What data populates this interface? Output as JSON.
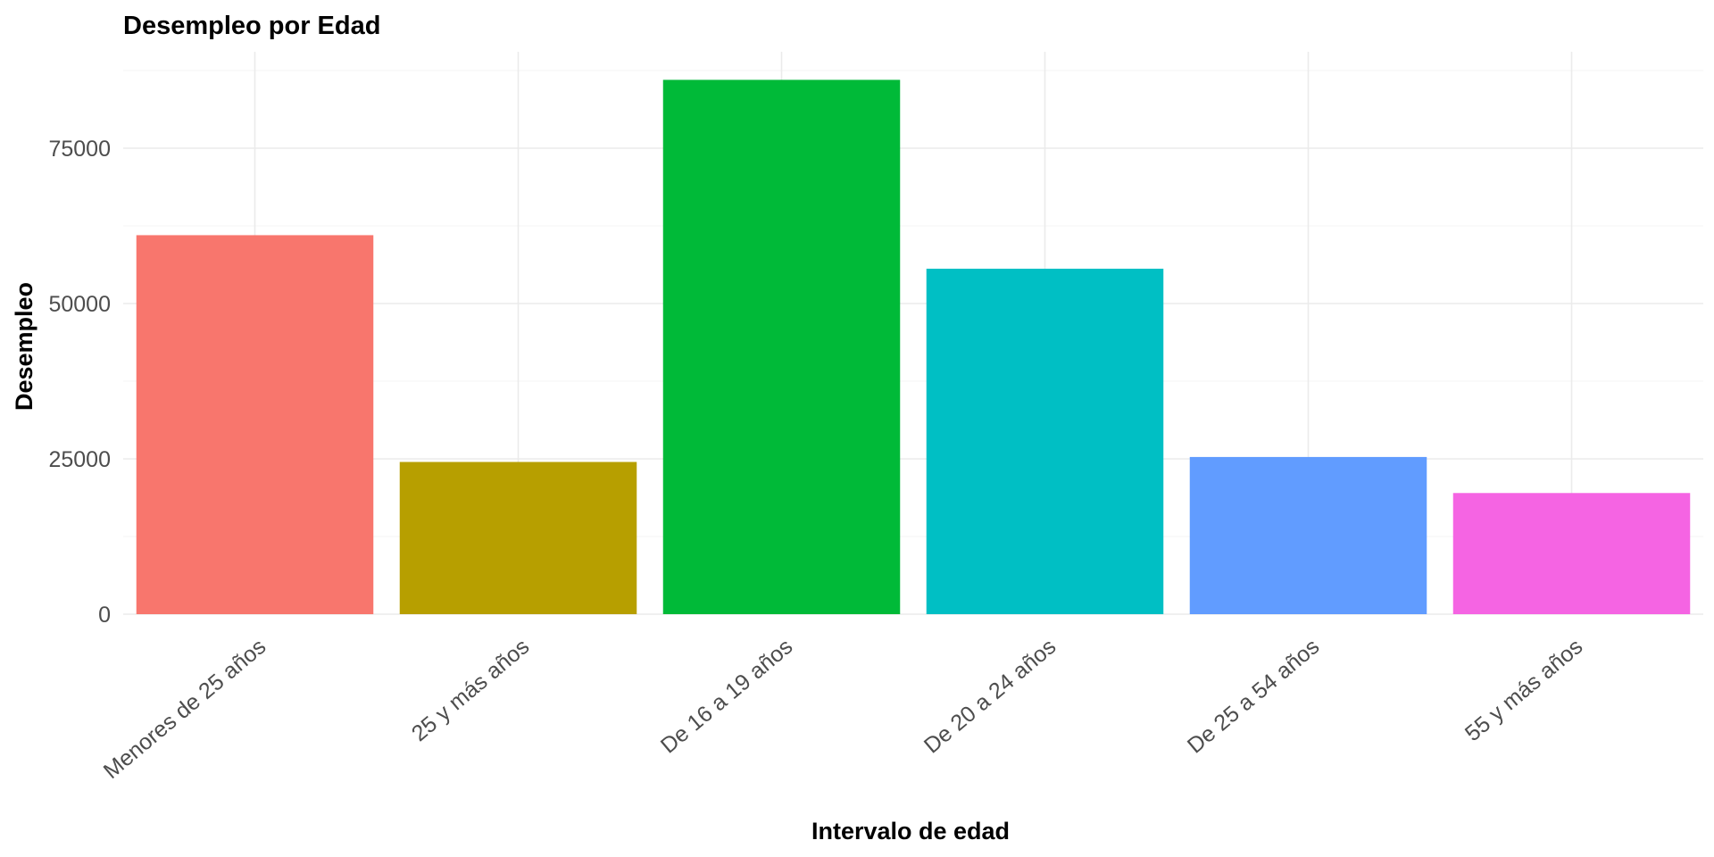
{
  "chart_data": {
    "type": "bar",
    "title": "Desempleo por Edad",
    "xlabel": "Intervalo de edad",
    "ylabel": "Desempleo",
    "categories": [
      "Menores de 25 años",
      "25 y más años",
      "De 16 a 19 años",
      "De 20 a 24 años",
      "De 25 a 54 años",
      "55 y más años"
    ],
    "values": [
      61000,
      24500,
      86000,
      55600,
      25300,
      19500
    ],
    "colors": [
      "#F8766D",
      "#B79F00",
      "#00BA38",
      "#00BFC4",
      "#619CFF",
      "#F564E3"
    ],
    "ylim": [
      0,
      90000
    ],
    "yticks": [
      0,
      25000,
      50000,
      75000
    ],
    "ytick_labels": [
      "0",
      "25000",
      "50000",
      "75000"
    ],
    "grid": true,
    "legend": "none"
  }
}
